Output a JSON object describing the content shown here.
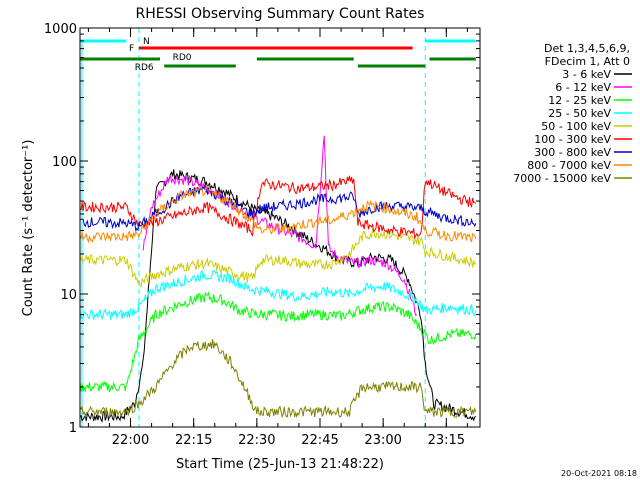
{
  "chart_data": {
    "type": "line",
    "title": "RHESSI Observing Summary Count Rates",
    "xlabel": "Start Time (25-Jun-13 21:48:22)",
    "ylabel": "Count Rate (s⁻¹ detector⁻¹)",
    "x_unit": "minutes of day (HH:MM)",
    "xlim": [
      "21:48",
      "23:23"
    ],
    "ylim": [
      1,
      1000
    ],
    "yscale": "log",
    "x_ticks": [
      {
        "t": "22:00",
        "label": "22:00"
      },
      {
        "t": "22:15",
        "label": "22:15"
      },
      {
        "t": "22:30",
        "label": "22:30"
      },
      {
        "t": "22:45",
        "label": "22:45"
      },
      {
        "t": "23:00",
        "label": "23:00"
      },
      {
        "t": "23:15",
        "label": "23:15"
      }
    ],
    "y_ticks": [
      {
        "v": 1,
        "label": "1"
      },
      {
        "v": 10,
        "label": "10"
      },
      {
        "v": 100,
        "label": "100"
      },
      {
        "v": 1000,
        "label": "1000"
      }
    ],
    "legend": {
      "position": "right",
      "header": [
        "Det 1,3,4,5,6,9,",
        "FDecim 1, Att 0"
      ]
    },
    "series": [
      {
        "name": "3 - 6 keV",
        "color": "#000000",
        "points": [
          [
            "21:48",
            1.2
          ],
          [
            "21:58",
            1.2
          ],
          [
            "22:01",
            1.5
          ],
          [
            "22:03",
            3
          ],
          [
            "22:06",
            60
          ],
          [
            "22:10",
            80
          ],
          [
            "22:14",
            75
          ],
          [
            "22:18",
            70
          ],
          [
            "22:22",
            60
          ],
          [
            "22:26",
            50
          ],
          [
            "22:30",
            42
          ],
          [
            "22:34",
            38
          ],
          [
            "22:38",
            32
          ],
          [
            "22:42",
            26
          ],
          [
            "22:46",
            22
          ],
          [
            "22:50",
            18
          ],
          [
            "22:54",
            17
          ],
          [
            "22:58",
            19
          ],
          [
            "23:02",
            18
          ],
          [
            "23:06",
            13
          ],
          [
            "23:09",
            7
          ],
          [
            "23:10",
            3
          ],
          [
            "23:12",
            1.5
          ],
          [
            "23:22",
            1.2
          ]
        ]
      },
      {
        "name": "6 - 12 keV",
        "color": "#ff00ff",
        "points": [
          [
            "22:03",
            22
          ],
          [
            "22:05",
            45
          ],
          [
            "22:09",
            75
          ],
          [
            "22:13",
            72
          ],
          [
            "22:17",
            65
          ],
          [
            "22:21",
            55
          ],
          [
            "22:25",
            46
          ],
          [
            "22:29",
            38
          ],
          [
            "22:33",
            33
          ],
          [
            "22:37",
            29
          ],
          [
            "22:41",
            26
          ],
          [
            "22:44",
            23
          ],
          [
            "22:46",
            160
          ],
          [
            "22:47",
            22
          ],
          [
            "22:49",
            19
          ],
          [
            "22:53",
            17
          ],
          [
            "22:57",
            18
          ],
          [
            "23:01",
            17
          ],
          [
            "23:05",
            13
          ],
          [
            "23:08",
            7
          ]
        ]
      },
      {
        "name": "12 - 25 keV",
        "color": "#00ff00",
        "points": [
          [
            "21:48",
            2
          ],
          [
            "21:59",
            2
          ],
          [
            "22:02",
            4.5
          ],
          [
            "22:06",
            7
          ],
          [
            "22:12",
            8.5
          ],
          [
            "22:18",
            9.5
          ],
          [
            "22:22",
            9
          ],
          [
            "22:26",
            7.5
          ],
          [
            "22:30",
            7
          ],
          [
            "22:34",
            7
          ],
          [
            "22:38",
            6.8
          ],
          [
            "22:42",
            7
          ],
          [
            "22:46",
            7
          ],
          [
            "22:50",
            6.8
          ],
          [
            "22:54",
            7.5
          ],
          [
            "22:58",
            8
          ],
          [
            "23:02",
            8
          ],
          [
            "23:06",
            7
          ],
          [
            "23:09",
            5.5
          ],
          [
            "23:11",
            4.5
          ],
          [
            "23:16",
            5
          ],
          [
            "23:22",
            5
          ]
        ]
      },
      {
        "name": "25 - 50 keV",
        "color": "#00ffff",
        "points": [
          [
            "21:48",
            7
          ],
          [
            "21:59",
            7
          ],
          [
            "22:02",
            8
          ],
          [
            "22:06",
            11
          ],
          [
            "22:12",
            12.5
          ],
          [
            "22:18",
            14
          ],
          [
            "22:24",
            13
          ],
          [
            "22:28",
            11
          ],
          [
            "22:32",
            10.5
          ],
          [
            "22:36",
            10
          ],
          [
            "22:40",
            9.5
          ],
          [
            "22:44",
            10
          ],
          [
            "22:48",
            10.5
          ],
          [
            "22:52",
            10
          ],
          [
            "22:56",
            11
          ],
          [
            "23:00",
            11.5
          ],
          [
            "23:04",
            10.5
          ],
          [
            "23:08",
            9
          ],
          [
            "23:10",
            7.5
          ],
          [
            "23:16",
            8
          ],
          [
            "23:22",
            7.5
          ]
        ]
      },
      {
        "name": "50 - 100 keV",
        "color": "#cccc00",
        "points": [
          [
            "21:48",
            18
          ],
          [
            "21:59",
            18
          ],
          [
            "22:02",
            12
          ],
          [
            "22:06",
            14
          ],
          [
            "22:12",
            16
          ],
          [
            "22:18",
            17
          ],
          [
            "22:24",
            14.5
          ],
          [
            "22:29",
            13
          ],
          [
            "22:31",
            18
          ],
          [
            "22:36",
            18
          ],
          [
            "22:40",
            17
          ],
          [
            "22:44",
            16.5
          ],
          [
            "22:48",
            17
          ],
          [
            "22:52",
            20
          ],
          [
            "22:55",
            27
          ],
          [
            "22:58",
            29
          ],
          [
            "23:02",
            28
          ],
          [
            "23:06",
            26
          ],
          [
            "23:09",
            25
          ],
          [
            "23:10",
            21
          ],
          [
            "23:16",
            19
          ],
          [
            "23:22",
            17
          ]
        ]
      },
      {
        "name": "100 - 300 keV",
        "color": "#ff0000",
        "points": [
          [
            "21:48",
            45
          ],
          [
            "21:59",
            45
          ],
          [
            "22:02",
            33
          ],
          [
            "22:06",
            35
          ],
          [
            "22:12",
            40
          ],
          [
            "22:18",
            45
          ],
          [
            "22:24",
            36
          ],
          [
            "22:29",
            30
          ],
          [
            "22:31",
            68
          ],
          [
            "22:36",
            65
          ],
          [
            "22:40",
            62
          ],
          [
            "22:44",
            64
          ],
          [
            "22:48",
            66
          ],
          [
            "22:53",
            72
          ],
          [
            "22:54",
            34
          ],
          [
            "22:58",
            32
          ],
          [
            "23:02",
            30
          ],
          [
            "23:06",
            29
          ],
          [
            "23:09",
            28
          ],
          [
            "23:10",
            72
          ],
          [
            "23:14",
            60
          ],
          [
            "23:18",
            52
          ],
          [
            "23:22",
            48
          ]
        ]
      },
      {
        "name": "300 - 800 keV",
        "color": "#0000cc",
        "points": [
          [
            "21:48",
            35
          ],
          [
            "21:59",
            34
          ],
          [
            "22:02",
            32
          ],
          [
            "22:06",
            40
          ],
          [
            "22:12",
            55
          ],
          [
            "22:18",
            62
          ],
          [
            "22:24",
            48
          ],
          [
            "22:29",
            40
          ],
          [
            "22:31",
            44
          ],
          [
            "22:36",
            46
          ],
          [
            "22:40",
            48
          ],
          [
            "22:44",
            51
          ],
          [
            "22:48",
            52
          ],
          [
            "22:53",
            54
          ],
          [
            "22:54",
            40
          ],
          [
            "22:58",
            45
          ],
          [
            "23:02",
            46
          ],
          [
            "23:06",
            45
          ],
          [
            "23:09",
            44
          ],
          [
            "23:10",
            42
          ],
          [
            "23:14",
            38
          ],
          [
            "23:18",
            36
          ],
          [
            "23:22",
            34
          ]
        ]
      },
      {
        "name": "800 - 7000 keV",
        "color": "#ff8800",
        "points": [
          [
            "21:48",
            27
          ],
          [
            "21:59",
            27
          ],
          [
            "22:02",
            28
          ],
          [
            "22:06",
            40
          ],
          [
            "22:12",
            55
          ],
          [
            "22:18",
            60
          ],
          [
            "22:24",
            48
          ],
          [
            "22:29",
            35
          ],
          [
            "22:31",
            30
          ],
          [
            "22:36",
            31
          ],
          [
            "22:40",
            33
          ],
          [
            "22:44",
            35
          ],
          [
            "22:48",
            36
          ],
          [
            "22:52",
            40
          ],
          [
            "22:56",
            46
          ],
          [
            "23:00",
            45
          ],
          [
            "23:04",
            41
          ],
          [
            "23:08",
            38
          ],
          [
            "23:10",
            30
          ],
          [
            "23:14",
            28
          ],
          [
            "23:18",
            27
          ],
          [
            "23:22",
            26
          ]
        ]
      },
      {
        "name": "7000 - 15000 keV",
        "color": "#808000",
        "points": [
          [
            "21:48",
            1.3
          ],
          [
            "21:59",
            1.3
          ],
          [
            "22:02",
            1.5
          ],
          [
            "22:06",
            2
          ],
          [
            "22:10",
            3
          ],
          [
            "22:14",
            4
          ],
          [
            "22:20",
            4.2
          ],
          [
            "22:24",
            3
          ],
          [
            "22:27",
            2
          ],
          [
            "22:30",
            1.3
          ],
          [
            "22:52",
            1.3
          ],
          [
            "22:55",
            2
          ],
          [
            "23:05",
            2
          ],
          [
            "23:09",
            2
          ],
          [
            "23:10",
            1.3
          ],
          [
            "23:22",
            1.3
          ]
        ]
      }
    ],
    "annotations": [
      {
        "label": "N",
        "color": "#00ffff",
        "segments": [
          [
            "21:48",
            "21:59"
          ],
          [
            "23:10",
            "23:22"
          ]
        ],
        "level": "top"
      },
      {
        "label": "F",
        "color": "#ff0000",
        "segments": [
          [
            "22:02",
            "23:07"
          ]
        ],
        "level": "second"
      },
      {
        "label": "RD0",
        "color": "#008000",
        "segments": [
          [
            "21:48",
            "22:07"
          ],
          [
            "22:30",
            "22:53"
          ],
          [
            "23:11",
            "23:22"
          ]
        ],
        "level": "third",
        "label_at": "22:10"
      },
      {
        "label": "RD6",
        "color": "#008000",
        "segments": [
          [
            "22:08",
            "22:25"
          ],
          [
            "22:54",
            "23:10"
          ]
        ],
        "level": "fourth",
        "label_at": "22:01"
      }
    ],
    "guide_lines": {
      "color": "#00ffff",
      "times": [
        "22:02",
        "23:10"
      ]
    }
  },
  "footer": {
    "timestamp": "20-Oct-2021 08:18"
  }
}
